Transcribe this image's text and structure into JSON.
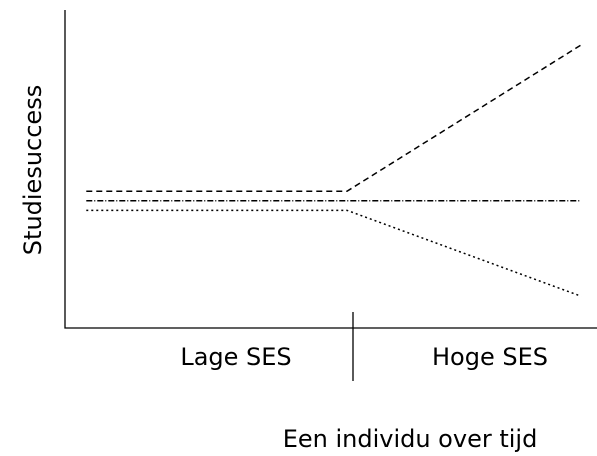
{
  "chart_data": {
    "type": "line",
    "x_label": "Een individu over tijd",
    "y_label": "Studiesuccess",
    "categories": [
      "Lage SES",
      "Hoge SES"
    ],
    "x": [
      0.4,
      5.3,
      9.7
    ],
    "xlim": [
      0,
      10
    ],
    "ylim": [
      0,
      10
    ],
    "series": [
      {
        "color": "#000000",
        "style": "dashed",
        "values": [
          4.3,
          4.3,
          8.9
        ]
      },
      {
        "color": "#000000",
        "style": "dashdot",
        "values": [
          4.0,
          4.0,
          4.0
        ]
      },
      {
        "color": "#000000",
        "style": "dotted",
        "values": [
          3.7,
          3.7,
          1.0
        ]
      }
    ]
  }
}
